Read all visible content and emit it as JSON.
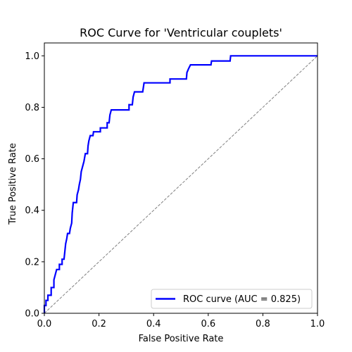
{
  "chart_data": {
    "type": "line",
    "title": "ROC Curve for 'Ventricular couplets'",
    "xlabel": "False Positive Rate",
    "ylabel": "True Positive Rate",
    "xlim": [
      0.0,
      1.0
    ],
    "ylim": [
      0.0,
      1.05
    ],
    "x_ticks": [
      0.0,
      0.2,
      0.4,
      0.6,
      0.8,
      1.0
    ],
    "x_tick_labels": [
      "0.0",
      "0.2",
      "0.4",
      "0.6",
      "0.8",
      "1.0"
    ],
    "y_ticks": [
      0.0,
      0.2,
      0.4,
      0.6,
      0.8,
      1.0
    ],
    "y_tick_labels": [
      "0.0",
      "0.2",
      "0.4",
      "0.6",
      "0.8",
      "1.0"
    ],
    "grid": false,
    "legend_position": "lower-right",
    "series": [
      {
        "name": "ROC curve (AUC = 0.825)",
        "color": "#0000ff",
        "style": "solid",
        "step": true,
        "points": [
          [
            0.0,
            0.0
          ],
          [
            0.0,
            0.03
          ],
          [
            0.006,
            0.03
          ],
          [
            0.006,
            0.05
          ],
          [
            0.013,
            0.05
          ],
          [
            0.013,
            0.07
          ],
          [
            0.025,
            0.07
          ],
          [
            0.025,
            0.1
          ],
          [
            0.035,
            0.1
          ],
          [
            0.035,
            0.13
          ],
          [
            0.04,
            0.15
          ],
          [
            0.045,
            0.17
          ],
          [
            0.055,
            0.17
          ],
          [
            0.055,
            0.19
          ],
          [
            0.065,
            0.19
          ],
          [
            0.065,
            0.21
          ],
          [
            0.072,
            0.21
          ],
          [
            0.075,
            0.24
          ],
          [
            0.078,
            0.27
          ],
          [
            0.082,
            0.29
          ],
          [
            0.085,
            0.31
          ],
          [
            0.092,
            0.31
          ],
          [
            0.095,
            0.33
          ],
          [
            0.1,
            0.35
          ],
          [
            0.102,
            0.39
          ],
          [
            0.106,
            0.43
          ],
          [
            0.118,
            0.43
          ],
          [
            0.12,
            0.46
          ],
          [
            0.125,
            0.48
          ],
          [
            0.128,
            0.5
          ],
          [
            0.132,
            0.52
          ],
          [
            0.135,
            0.55
          ],
          [
            0.14,
            0.57
          ],
          [
            0.145,
            0.59
          ],
          [
            0.15,
            0.62
          ],
          [
            0.158,
            0.62
          ],
          [
            0.16,
            0.65
          ],
          [
            0.163,
            0.67
          ],
          [
            0.168,
            0.69
          ],
          [
            0.178,
            0.69
          ],
          [
            0.18,
            0.705
          ],
          [
            0.205,
            0.705
          ],
          [
            0.205,
            0.72
          ],
          [
            0.23,
            0.72
          ],
          [
            0.23,
            0.74
          ],
          [
            0.237,
            0.74
          ],
          [
            0.24,
            0.77
          ],
          [
            0.245,
            0.79
          ],
          [
            0.31,
            0.79
          ],
          [
            0.31,
            0.81
          ],
          [
            0.322,
            0.81
          ],
          [
            0.325,
            0.84
          ],
          [
            0.33,
            0.86
          ],
          [
            0.36,
            0.86
          ],
          [
            0.365,
            0.895
          ],
          [
            0.46,
            0.895
          ],
          [
            0.46,
            0.91
          ],
          [
            0.52,
            0.91
          ],
          [
            0.522,
            0.935
          ],
          [
            0.528,
            0.95
          ],
          [
            0.535,
            0.965
          ],
          [
            0.61,
            0.965
          ],
          [
            0.612,
            0.98
          ],
          [
            0.68,
            0.98
          ],
          [
            0.682,
            1.0
          ],
          [
            1.0,
            1.0
          ]
        ]
      },
      {
        "name": "",
        "color": "#808080",
        "style": "dashed",
        "points": [
          [
            0.0,
            0.0
          ],
          [
            1.0,
            1.0
          ]
        ]
      }
    ]
  }
}
